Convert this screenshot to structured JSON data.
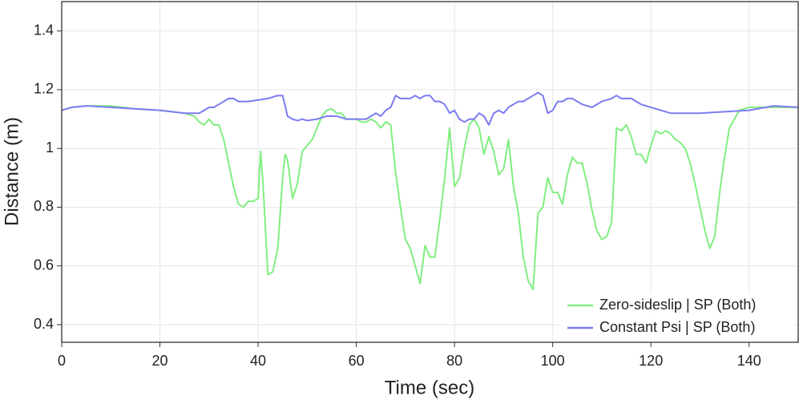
{
  "chart_data": {
    "type": "line",
    "xlabel": "Time (sec)",
    "ylabel": "Distance (m)",
    "xlim": [
      0,
      150
    ],
    "ylim": [
      0.34,
      1.5
    ],
    "xticks": [
      0,
      20,
      40,
      60,
      80,
      100,
      120,
      140
    ],
    "yticks": [
      0.4,
      0.6,
      0.8,
      1,
      1.2,
      1.4
    ],
    "grid": true,
    "legend": "lower right",
    "series": [
      {
        "name": "Zero-sideslip | SP (Both)",
        "color": "#80ee80",
        "x": [
          0,
          2,
          5,
          10,
          15,
          20,
          25,
          26,
          27,
          28,
          29,
          30,
          31,
          32,
          33,
          34,
          35,
          36,
          37,
          38,
          39,
          40,
          40.5,
          41,
          42,
          43,
          44,
          45,
          45.5,
          46,
          47,
          48,
          49,
          50,
          51,
          52,
          53,
          54,
          55,
          56,
          57,
          58,
          59,
          60,
          61,
          62,
          63,
          64,
          65,
          66,
          67,
          68,
          69,
          70,
          71,
          72,
          73,
          74,
          75,
          76,
          77,
          78,
          79,
          80,
          81,
          82,
          83,
          84,
          85,
          86,
          87,
          88,
          89,
          90,
          91,
          92,
          93,
          94,
          95,
          96,
          97,
          98,
          99,
          100,
          101,
          102,
          103,
          104,
          105,
          106,
          107,
          108,
          109,
          110,
          111,
          112,
          113,
          114,
          115,
          116,
          117,
          118,
          119,
          120,
          121,
          122,
          123,
          124,
          125,
          126,
          127,
          128,
          129,
          130,
          131,
          132,
          133,
          134,
          135,
          136,
          137,
          138,
          140,
          145,
          150
        ],
        "values": [
          1.13,
          1.14,
          1.145,
          1.145,
          1.135,
          1.13,
          1.12,
          1.115,
          1.11,
          1.09,
          1.08,
          1.1,
          1.08,
          1.08,
          1.03,
          0.95,
          0.87,
          0.81,
          0.8,
          0.82,
          0.82,
          0.83,
          0.99,
          0.88,
          0.57,
          0.58,
          0.66,
          0.9,
          0.98,
          0.96,
          0.83,
          0.88,
          0.99,
          1.01,
          1.03,
          1.07,
          1.11,
          1.13,
          1.135,
          1.12,
          1.12,
          1.1,
          1.1,
          1.1,
          1.09,
          1.09,
          1.1,
          1.09,
          1.07,
          1.09,
          1.08,
          0.92,
          0.8,
          0.69,
          0.66,
          0.6,
          0.54,
          0.67,
          0.63,
          0.63,
          0.76,
          0.9,
          1.07,
          0.87,
          0.9,
          1.0,
          1.08,
          1.1,
          1.07,
          0.98,
          1.04,
          0.99,
          0.91,
          0.93,
          1.03,
          0.87,
          0.78,
          0.63,
          0.55,
          0.52,
          0.78,
          0.8,
          0.9,
          0.85,
          0.85,
          0.81,
          0.91,
          0.97,
          0.95,
          0.95,
          0.88,
          0.79,
          0.72,
          0.69,
          0.7,
          0.75,
          1.07,
          1.06,
          1.08,
          1.04,
          0.98,
          0.98,
          0.95,
          1.01,
          1.06,
          1.05,
          1.06,
          1.05,
          1.03,
          1.02,
          1.0,
          0.95,
          0.88,
          0.8,
          0.72,
          0.66,
          0.7,
          0.85,
          0.97,
          1.07,
          1.1,
          1.13,
          1.14,
          1.14,
          1.14
        ]
      },
      {
        "name": "Constant Psi | SP (Both)",
        "color": "#7b7bf0",
        "x": [
          0,
          2,
          5,
          10,
          15,
          20,
          25,
          27,
          28,
          29,
          30,
          31,
          32,
          33,
          34,
          35,
          36,
          37,
          38,
          40,
          42,
          43,
          44,
          45,
          46,
          47,
          48,
          49,
          50,
          52,
          54,
          56,
          58,
          60,
          62,
          63,
          64,
          65,
          66,
          67,
          68,
          69,
          70,
          71,
          72,
          73,
          74,
          75,
          76,
          77,
          78,
          79,
          80,
          81,
          82,
          83,
          84,
          85,
          86,
          87,
          88,
          89,
          90,
          91,
          92,
          93,
          94,
          95,
          96,
          97,
          98,
          99,
          100,
          101,
          102,
          103,
          104,
          105,
          106,
          108,
          110,
          112,
          113,
          114,
          116,
          118,
          120,
          122,
          124,
          126,
          130,
          135,
          140,
          145,
          150
        ],
        "values": [
          1.13,
          1.14,
          1.145,
          1.14,
          1.135,
          1.13,
          1.12,
          1.12,
          1.12,
          1.13,
          1.14,
          1.14,
          1.15,
          1.16,
          1.17,
          1.17,
          1.16,
          1.16,
          1.16,
          1.165,
          1.17,
          1.175,
          1.18,
          1.18,
          1.11,
          1.1,
          1.095,
          1.1,
          1.095,
          1.1,
          1.11,
          1.11,
          1.1,
          1.1,
          1.1,
          1.11,
          1.12,
          1.11,
          1.13,
          1.14,
          1.18,
          1.17,
          1.17,
          1.17,
          1.18,
          1.17,
          1.18,
          1.18,
          1.16,
          1.16,
          1.15,
          1.12,
          1.13,
          1.1,
          1.09,
          1.1,
          1.1,
          1.12,
          1.11,
          1.08,
          1.12,
          1.13,
          1.12,
          1.14,
          1.15,
          1.16,
          1.16,
          1.17,
          1.18,
          1.19,
          1.18,
          1.12,
          1.13,
          1.16,
          1.16,
          1.17,
          1.17,
          1.16,
          1.15,
          1.14,
          1.16,
          1.17,
          1.18,
          1.17,
          1.17,
          1.15,
          1.14,
          1.13,
          1.12,
          1.12,
          1.12,
          1.125,
          1.13,
          1.145,
          1.14
        ]
      }
    ]
  }
}
